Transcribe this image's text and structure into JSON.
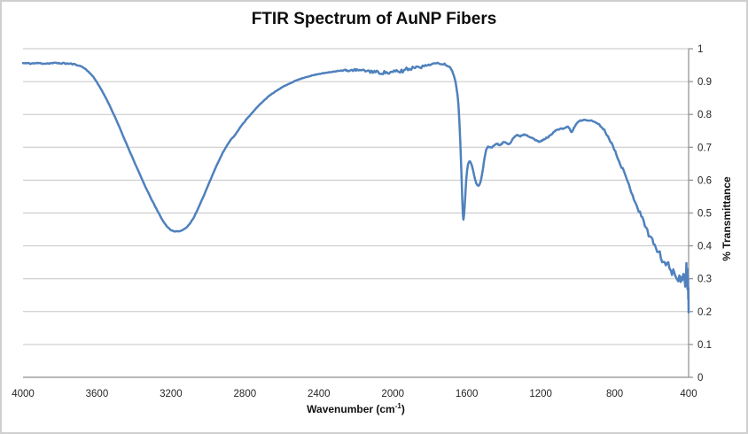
{
  "chart_data": {
    "type": "line",
    "title": "FTIR Spectrum of AuNP Fibers",
    "xlabel": "Wavenumber (cm⁻¹)",
    "xlabel_parts": {
      "prefix": "Wavenumber (cm",
      "sup": "-1",
      "suffix": ")"
    },
    "ylabel": "% Transmittance",
    "x_range": [
      4000,
      400
    ],
    "x_reversed": true,
    "ylim": [
      0,
      1
    ],
    "x_ticks": [
      4000,
      3600,
      3200,
      2800,
      2400,
      2000,
      1600,
      1200,
      800,
      400
    ],
    "y_ticks": [
      "1",
      "0.9",
      "0.8",
      "0.7",
      "0.6",
      "0.5",
      "0.4",
      "0.3",
      "0.2",
      "0.1",
      "0"
    ],
    "grid": "horizontal-only",
    "legend": "none",
    "series": [
      {
        "name": "% Transmittance",
        "points": [
          [
            4000,
            0.956
          ],
          [
            3960,
            0.955
          ],
          [
            3920,
            0.956
          ],
          [
            3880,
            0.955
          ],
          [
            3840,
            0.956
          ],
          [
            3800,
            0.956
          ],
          [
            3770,
            0.955
          ],
          [
            3740,
            0.954
          ],
          [
            3720,
            0.952
          ],
          [
            3700,
            0.949
          ],
          [
            3680,
            0.945
          ],
          [
            3660,
            0.937
          ],
          [
            3640,
            0.927
          ],
          [
            3620,
            0.914
          ],
          [
            3600,
            0.898
          ],
          [
            3570,
            0.869
          ],
          [
            3540,
            0.837
          ],
          [
            3510,
            0.801
          ],
          [
            3480,
            0.763
          ],
          [
            3450,
            0.723
          ],
          [
            3420,
            0.684
          ],
          [
            3390,
            0.645
          ],
          [
            3360,
            0.607
          ],
          [
            3330,
            0.57
          ],
          [
            3300,
            0.536
          ],
          [
            3280,
            0.514
          ],
          [
            3260,
            0.493
          ],
          [
            3240,
            0.473
          ],
          [
            3220,
            0.458
          ],
          [
            3200,
            0.448
          ],
          [
            3180,
            0.444
          ],
          [
            3160,
            0.444
          ],
          [
            3140,
            0.447
          ],
          [
            3120,
            0.454
          ],
          [
            3100,
            0.466
          ],
          [
            3080,
            0.483
          ],
          [
            3060,
            0.505
          ],
          [
            3040,
            0.53
          ],
          [
            3020,
            0.556
          ],
          [
            3000,
            0.583
          ],
          [
            2980,
            0.61
          ],
          [
            2960,
            0.636
          ],
          [
            2940,
            0.66
          ],
          [
            2920,
            0.683
          ],
          [
            2900,
            0.703
          ],
          [
            2880,
            0.72
          ],
          [
            2870,
            0.728
          ],
          [
            2860,
            0.733
          ],
          [
            2850,
            0.74
          ],
          [
            2830,
            0.757
          ],
          [
            2810,
            0.772
          ],
          [
            2800,
            0.779
          ],
          [
            2790,
            0.787
          ],
          [
            2780,
            0.793
          ],
          [
            2760,
            0.805
          ],
          [
            2740,
            0.818
          ],
          [
            2720,
            0.83
          ],
          [
            2700,
            0.841
          ],
          [
            2680,
            0.851
          ],
          [
            2660,
            0.86
          ],
          [
            2640,
            0.868
          ],
          [
            2620,
            0.875
          ],
          [
            2600,
            0.882
          ],
          [
            2560,
            0.894
          ],
          [
            2520,
            0.904
          ],
          [
            2480,
            0.912
          ],
          [
            2440,
            0.918
          ],
          [
            2400,
            0.923
          ],
          [
            2350,
            0.928
          ],
          [
            2300,
            0.932
          ],
          [
            2250,
            0.934
          ],
          [
            2200,
            0.935
          ],
          [
            2150,
            0.933
          ],
          [
            2100,
            0.93
          ],
          [
            2080,
            0.928
          ],
          [
            2060,
            0.927
          ],
          [
            2040,
            0.928
          ],
          [
            2020,
            0.926
          ],
          [
            2000,
            0.928
          ],
          [
            1980,
            0.931
          ],
          [
            1960,
            0.93
          ],
          [
            1940,
            0.934
          ],
          [
            1925,
            0.941
          ],
          [
            1915,
            0.937
          ],
          [
            1900,
            0.941
          ],
          [
            1880,
            0.944
          ],
          [
            1860,
            0.947
          ],
          [
            1845,
            0.944
          ],
          [
            1820,
            0.949
          ],
          [
            1800,
            0.952
          ],
          [
            1780,
            0.954
          ],
          [
            1760,
            0.955
          ],
          [
            1740,
            0.955
          ],
          [
            1720,
            0.953
          ],
          [
            1700,
            0.948
          ],
          [
            1690,
            0.943
          ],
          [
            1680,
            0.934
          ],
          [
            1670,
            0.919
          ],
          [
            1660,
            0.897
          ],
          [
            1650,
            0.86
          ],
          [
            1645,
            0.83
          ],
          [
            1640,
            0.78
          ],
          [
            1635,
            0.715
          ],
          [
            1630,
            0.64
          ],
          [
            1627,
            0.59
          ],
          [
            1624,
            0.535
          ],
          [
            1621,
            0.497
          ],
          [
            1618,
            0.48
          ],
          [
            1615,
            0.493
          ],
          [
            1611,
            0.525
          ],
          [
            1607,
            0.563
          ],
          [
            1603,
            0.6
          ],
          [
            1598,
            0.63
          ],
          [
            1593,
            0.648
          ],
          [
            1588,
            0.656
          ],
          [
            1583,
            0.657
          ],
          [
            1578,
            0.653
          ],
          [
            1572,
            0.644
          ],
          [
            1566,
            0.63
          ],
          [
            1560,
            0.614
          ],
          [
            1554,
            0.6
          ],
          [
            1548,
            0.59
          ],
          [
            1542,
            0.584
          ],
          [
            1536,
            0.583
          ],
          [
            1530,
            0.588
          ],
          [
            1524,
            0.598
          ],
          [
            1518,
            0.614
          ],
          [
            1512,
            0.636
          ],
          [
            1506,
            0.66
          ],
          [
            1500,
            0.68
          ],
          [
            1495,
            0.692
          ],
          [
            1490,
            0.699
          ],
          [
            1485,
            0.702
          ],
          [
            1478,
            0.701
          ],
          [
            1470,
            0.699
          ],
          [
            1460,
            0.701
          ],
          [
            1450,
            0.707
          ],
          [
            1440,
            0.712
          ],
          [
            1430,
            0.709
          ],
          [
            1420,
            0.705
          ],
          [
            1410,
            0.711
          ],
          [
            1400,
            0.716
          ],
          [
            1390,
            0.715
          ],
          [
            1380,
            0.712
          ],
          [
            1370,
            0.711
          ],
          [
            1360,
            0.717
          ],
          [
            1350,
            0.727
          ],
          [
            1340,
            0.733
          ],
          [
            1330,
            0.736
          ],
          [
            1320,
            0.736
          ],
          [
            1310,
            0.734
          ],
          [
            1300,
            0.737
          ],
          [
            1290,
            0.739
          ],
          [
            1280,
            0.738
          ],
          [
            1270,
            0.735
          ],
          [
            1260,
            0.732
          ],
          [
            1250,
            0.731
          ],
          [
            1240,
            0.728
          ],
          [
            1230,
            0.722
          ],
          [
            1220,
            0.719
          ],
          [
            1210,
            0.717
          ],
          [
            1200,
            0.718
          ],
          [
            1190,
            0.721
          ],
          [
            1180,
            0.725
          ],
          [
            1170,
            0.728
          ],
          [
            1160,
            0.731
          ],
          [
            1150,
            0.735
          ],
          [
            1140,
            0.741
          ],
          [
            1130,
            0.747
          ],
          [
            1120,
            0.751
          ],
          [
            1110,
            0.753
          ],
          [
            1100,
            0.755
          ],
          [
            1090,
            0.756
          ],
          [
            1080,
            0.757
          ],
          [
            1070,
            0.759
          ],
          [
            1060,
            0.761
          ],
          [
            1050,
            0.762
          ],
          [
            1043,
            0.757
          ],
          [
            1037,
            0.748
          ],
          [
            1032,
            0.745
          ],
          [
            1027,
            0.75
          ],
          [
            1020,
            0.76
          ],
          [
            1010,
            0.769
          ],
          [
            1000,
            0.776
          ],
          [
            985,
            0.781
          ],
          [
            970,
            0.783
          ],
          [
            950,
            0.783
          ],
          [
            930,
            0.781
          ],
          [
            910,
            0.778
          ],
          [
            890,
            0.772
          ],
          [
            870,
            0.762
          ],
          [
            850,
            0.747
          ],
          [
            830,
            0.727
          ],
          [
            810,
            0.704
          ],
          [
            790,
            0.679
          ],
          [
            770,
            0.652
          ],
          [
            750,
            0.624
          ],
          [
            730,
            0.595
          ],
          [
            710,
            0.566
          ],
          [
            690,
            0.537
          ],
          [
            670,
            0.509
          ],
          [
            650,
            0.482
          ],
          [
            630,
            0.456
          ],
          [
            610,
            0.431
          ],
          [
            590,
            0.408
          ],
          [
            570,
            0.387
          ],
          [
            550,
            0.368
          ],
          [
            530,
            0.351
          ],
          [
            510,
            0.337
          ],
          [
            490,
            0.325
          ],
          [
            470,
            0.315
          ],
          [
            450,
            0.307
          ],
          [
            435,
            0.301
          ],
          [
            425,
            0.297
          ],
          [
            418,
            0.294
          ],
          [
            415,
            0.305
          ],
          [
            413,
            0.33
          ],
          [
            412,
            0.348
          ],
          [
            411,
            0.318
          ],
          [
            410,
            0.285
          ],
          [
            409,
            0.321
          ],
          [
            408,
            0.292
          ],
          [
            407,
            0.33
          ],
          [
            406,
            0.268
          ],
          [
            405,
            0.308
          ],
          [
            404,
            0.265
          ],
          [
            403,
            0.3
          ],
          [
            402,
            0.238
          ],
          [
            401,
            0.272
          ],
          [
            400.5,
            0.228
          ],
          [
            400,
            0.197
          ]
        ]
      }
    ],
    "noise_regions": [
      [
        4000,
        3710,
        0.002
      ],
      [
        2280,
        2130,
        0.003
      ],
      [
        2130,
        1990,
        0.005
      ],
      [
        1990,
        1900,
        0.006
      ],
      [
        1900,
        1835,
        0.004
      ],
      [
        1835,
        1700,
        0.0025
      ],
      [
        1520,
        1150,
        0.0018
      ],
      [
        1150,
        900,
        0.0015
      ],
      [
        900,
        790,
        0.003
      ],
      [
        790,
        700,
        0.005
      ],
      [
        700,
        620,
        0.007
      ],
      [
        620,
        550,
        0.01
      ],
      [
        550,
        495,
        0.014
      ],
      [
        495,
        455,
        0.018
      ],
      [
        455,
        418,
        0.023
      ]
    ]
  },
  "style": {
    "series_color": "#4F81BD",
    "gridline_color": "#C6C6C6",
    "axis_line_color": "#8E8E8E",
    "tick_label_color": "#262626",
    "title_color": "#0D0D0D",
    "frame_border_color": "#CFCFCF",
    "background": "#FFFFFF"
  }
}
